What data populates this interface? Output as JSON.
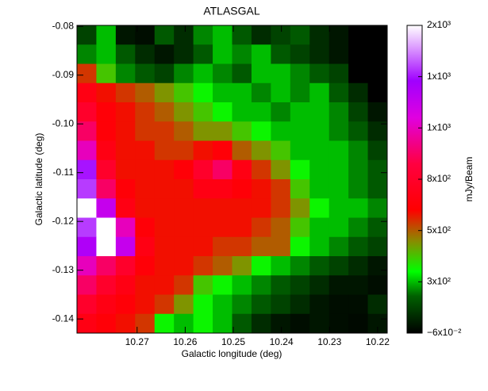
{
  "chart_data": {
    "type": "heatmap",
    "title": "ATLASGAL",
    "xlabel": "Galactic longitude (deg)",
    "ylabel": "Galactic latitude (deg)",
    "xlim": [
      10.2825,
      10.218
    ],
    "ylim": [
      -0.1429,
      -0.0798
    ],
    "xticks": [
      10.27,
      10.26,
      10.25,
      10.24,
      10.23,
      10.22
    ],
    "yticks": [
      -0.08,
      -0.09,
      {
        "value": -0.1,
        "label": "-0.10"
      },
      -0.11,
      -0.12,
      -0.13,
      -0.14
    ],
    "colorbar_label": "mJy/Beam",
    "colorbar_ticks": [
      {
        "value": -0.06,
        "label": "−6x10⁻²"
      },
      {
        "value": 300,
        "label": "3x10²"
      },
      {
        "value": 500,
        "label": "5x10²"
      },
      {
        "value": 800,
        "label": "8x10²"
      },
      {
        "value": 1000,
        "label": "1x10³"
      },
      {
        "value": 1400,
        "label": "1x10³"
      },
      {
        "value": 2000,
        "label": "2x10³"
      }
    ],
    "colormap": [
      {
        "stop": 0,
        "color": "#000000"
      },
      {
        "stop": 0.12,
        "color": "#006000"
      },
      {
        "stop": 0.2,
        "color": "#00ff00"
      },
      {
        "stop": 0.3,
        "color": "#8a8a00"
      },
      {
        "stop": 0.4,
        "color": "#ff0000"
      },
      {
        "stop": 0.55,
        "color": "#ff0040"
      },
      {
        "stop": 0.7,
        "color": "#e000e0"
      },
      {
        "stop": 0.82,
        "color": "#a000ff"
      },
      {
        "stop": 0.92,
        "color": "#d890ff"
      },
      {
        "stop": 1,
        "color": "#ffffff"
      }
    ],
    "z": [
      [
        150,
        300,
        50,
        30,
        200,
        100,
        250,
        300,
        200,
        100,
        150,
        200,
        100,
        50,
        0,
        0
      ],
      [
        250,
        300,
        200,
        100,
        50,
        100,
        200,
        300,
        250,
        300,
        200,
        150,
        100,
        50,
        0,
        0
      ],
      [
        550,
        400,
        250,
        200,
        150,
        250,
        300,
        250,
        200,
        300,
        300,
        250,
        200,
        150,
        0,
        0
      ],
      [
        700,
        600,
        550,
        500,
        450,
        400,
        350,
        300,
        300,
        250,
        300,
        250,
        300,
        200,
        100,
        0
      ],
      [
        800,
        650,
        600,
        550,
        500,
        450,
        400,
        350,
        300,
        300,
        250,
        300,
        300,
        250,
        150,
        50
      ],
      [
        900,
        650,
        600,
        550,
        550,
        500,
        450,
        450,
        400,
        350,
        300,
        300,
        300,
        250,
        200,
        100
      ],
      [
        1000,
        700,
        600,
        600,
        550,
        550,
        600,
        650,
        500,
        450,
        400,
        300,
        300,
        300,
        250,
        150
      ],
      [
        1400,
        800,
        600,
        600,
        600,
        650,
        800,
        900,
        700,
        550,
        450,
        350,
        300,
        300,
        250,
        200
      ],
      [
        1500,
        900,
        650,
        600,
        600,
        600,
        700,
        700,
        650,
        600,
        550,
        400,
        300,
        300,
        250,
        200
      ],
      [
        2000,
        1200,
        700,
        600,
        600,
        600,
        600,
        600,
        600,
        600,
        550,
        450,
        350,
        300,
        300,
        250
      ],
      [
        1500,
        2000,
        1000,
        650,
        600,
        600,
        600,
        600,
        600,
        550,
        500,
        400,
        300,
        300,
        250,
        200
      ],
      [
        1300,
        2000,
        1200,
        700,
        600,
        600,
        600,
        550,
        550,
        500,
        500,
        350,
        300,
        250,
        200,
        150
      ],
      [
        1000,
        900,
        800,
        650,
        600,
        600,
        550,
        500,
        450,
        350,
        300,
        250,
        200,
        150,
        100,
        50
      ],
      [
        900,
        800,
        700,
        600,
        600,
        550,
        400,
        350,
        300,
        250,
        200,
        150,
        100,
        50,
        50,
        30
      ],
      [
        800,
        700,
        650,
        600,
        550,
        450,
        350,
        300,
        250,
        200,
        150,
        100,
        50,
        30,
        30,
        100
      ],
      [
        700,
        650,
        600,
        550,
        350,
        300,
        350,
        300,
        200,
        100,
        50,
        30,
        50,
        30,
        20,
        50
      ]
    ]
  }
}
